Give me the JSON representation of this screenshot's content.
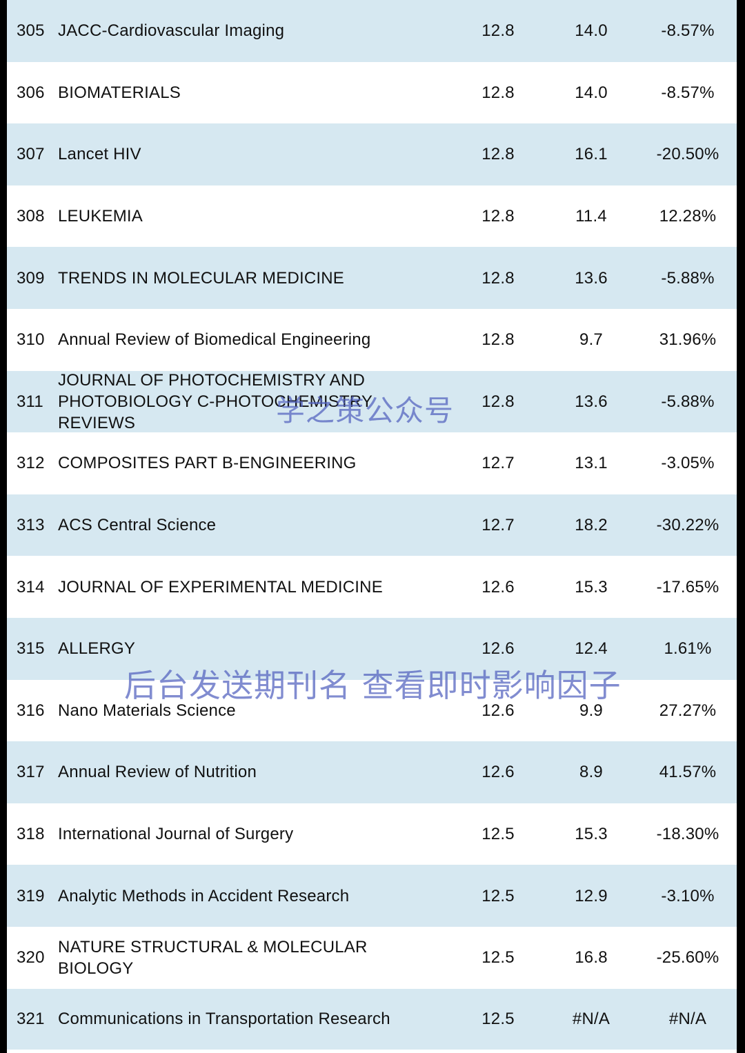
{
  "rows": [
    {
      "rank": "305",
      "name": "JACC-Cardiovascular Imaging",
      "if_current": "12.8",
      "if_previous": "14.0",
      "change": "-8.57%"
    },
    {
      "rank": "306",
      "name": "BIOMATERIALS",
      "if_current": "12.8",
      "if_previous": "14.0",
      "change": "-8.57%"
    },
    {
      "rank": "307",
      "name": "Lancet HIV",
      "if_current": "12.8",
      "if_previous": "16.1",
      "change": "-20.50%"
    },
    {
      "rank": "308",
      "name": "LEUKEMIA",
      "if_current": "12.8",
      "if_previous": "11.4",
      "change": "12.28%"
    },
    {
      "rank": "309",
      "name": "TRENDS IN MOLECULAR MEDICINE",
      "if_current": "12.8",
      "if_previous": "13.6",
      "change": "-5.88%"
    },
    {
      "rank": "310",
      "name": "Annual Review of Biomedical Engineering",
      "if_current": "12.8",
      "if_previous": "9.7",
      "change": "31.96%"
    },
    {
      "rank": "311",
      "name_lines": [
        "JOURNAL OF PHOTOCHEMISTRY AND",
        "PHOTOBIOLOGY C-PHOTOCHEMISTRY",
        "REVIEWS"
      ],
      "if_current": "12.8",
      "if_previous": "13.6",
      "change": "-5.88%"
    },
    {
      "rank": "312",
      "name": "COMPOSITES PART B-ENGINEERING",
      "if_current": "12.7",
      "if_previous": "13.1",
      "change": "-3.05%"
    },
    {
      "rank": "313",
      "name": "ACS Central Science",
      "if_current": "12.7",
      "if_previous": "18.2",
      "change": "-30.22%"
    },
    {
      "rank": "314",
      "name": "JOURNAL OF EXPERIMENTAL MEDICINE",
      "if_current": "12.6",
      "if_previous": "15.3",
      "change": "-17.65%"
    },
    {
      "rank": "315",
      "name": "ALLERGY",
      "if_current": "12.6",
      "if_previous": "12.4",
      "change": "1.61%"
    },
    {
      "rank": "316",
      "name": "Nano Materials Science",
      "if_current": "12.6",
      "if_previous": "9.9",
      "change": "27.27%"
    },
    {
      "rank": "317",
      "name": "Annual Review of Nutrition",
      "if_current": "12.6",
      "if_previous": "8.9",
      "change": "41.57%"
    },
    {
      "rank": "318",
      "name": "International Journal of Surgery",
      "if_current": "12.5",
      "if_previous": "15.3",
      "change": "-18.30%"
    },
    {
      "rank": "319",
      "name": "Analytic Methods in Accident Research",
      "if_current": "12.5",
      "if_previous": "12.9",
      "change": "-3.10%"
    },
    {
      "rank": "320",
      "name_lines": [
        "NATURE STRUCTURAL & MOLECULAR",
        "BIOLOGY"
      ],
      "if_current": "12.5",
      "if_previous": "16.8",
      "change": "-25.60%"
    },
    {
      "rank": "321",
      "name": "Communications in Transportation Research",
      "if_current": "12.5",
      "if_previous": "#N/A",
      "change": "#N/A"
    }
  ],
  "watermarks": {
    "top": "学之策公众号",
    "middle": "后台发送期刊名 查看即时影响因子"
  },
  "colors": {
    "row_shaded": "#d6e8f1",
    "row_plain": "#ffffff",
    "watermark": "#5060be",
    "border": "#000000"
  }
}
